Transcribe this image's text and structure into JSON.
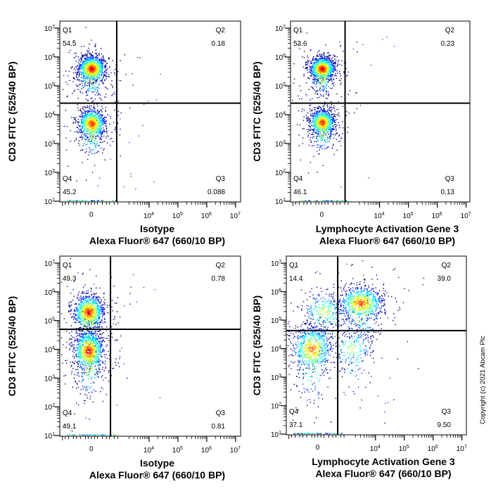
{
  "copyright": "Copyright (c) 2021 Abcam Plc",
  "colors": {
    "low": "#0000ff",
    "mid": "#00ff00",
    "high": "#ff0000",
    "gate": "#000000"
  },
  "chart_data": [
    {
      "type": "scatter",
      "xlabel": [
        "Isotype",
        "Alexa Fluor® 647  (660/10 BP)"
      ],
      "ylabel": "CD3 FITC  (525/40 BP)",
      "x_scale": "biexponential",
      "y_scale": "log",
      "x_ticks": [
        {
          "v": 0,
          "b": "0",
          "e": ""
        },
        {
          "v": 10000,
          "b": "10",
          "e": "4"
        },
        {
          "v": 100000,
          "b": "10",
          "e": "5"
        },
        {
          "v": 1000000,
          "b": "10",
          "e": "6"
        },
        {
          "v": 10000000,
          "b": "10",
          "e": "7"
        }
      ],
      "y_ticks": [
        {
          "v": 10,
          "b": "10",
          "e": "1"
        },
        {
          "v": 100,
          "b": "10",
          "e": "2"
        },
        {
          "v": 1000,
          "b": "10",
          "e": "3"
        },
        {
          "v": 10000,
          "b": "10",
          "e": "4"
        },
        {
          "v": 100000,
          "b": "10",
          "e": "5"
        },
        {
          "v": 1000000,
          "b": "10",
          "e": "6"
        },
        {
          "v": 10000000,
          "b": "10",
          "e": "7"
        }
      ],
      "gate": {
        "x": 740,
        "y": 25000
      },
      "quadrants": [
        {
          "name": "Q1",
          "value": "54.5"
        },
        {
          "name": "Q2",
          "value": "0.18"
        },
        {
          "name": "Q3",
          "value": "0.088"
        },
        {
          "name": "Q4",
          "value": "45.2"
        }
      ],
      "populations": [
        {
          "x": 0,
          "y": 400000,
          "x_sd": 0.55,
          "y_sd": 0.22,
          "weight": 0.54
        },
        {
          "x": 0,
          "y": 5000,
          "x_sd": 0.55,
          "y_sd": 0.25,
          "weight": 0.45
        }
      ]
    },
    {
      "type": "scatter",
      "xlabel": [
        "Lymphocyte Activation Gene 3",
        "Alexa Fluor® 647  (660/10 BP)"
      ],
      "ylabel": "CD3 FITC  (525/40 BP)",
      "x_scale": "biexponential",
      "y_scale": "log",
      "x_ticks": [
        {
          "v": 0,
          "b": "0",
          "e": ""
        },
        {
          "v": 10000,
          "b": "10",
          "e": "4"
        },
        {
          "v": 100000,
          "b": "10",
          "e": "5"
        },
        {
          "v": 1000000,
          "b": "10",
          "e": "6"
        },
        {
          "v": 10000000,
          "b": "10",
          "e": "7"
        }
      ],
      "y_ticks": [
        {
          "v": 10,
          "b": "10",
          "e": "1"
        },
        {
          "v": 100,
          "b": "10",
          "e": "2"
        },
        {
          "v": 1000,
          "b": "10",
          "e": "3"
        },
        {
          "v": 10000,
          "b": "10",
          "e": "4"
        },
        {
          "v": 100000,
          "b": "10",
          "e": "5"
        },
        {
          "v": 1000000,
          "b": "10",
          "e": "6"
        },
        {
          "v": 10000000,
          "b": "10",
          "e": "7"
        }
      ],
      "gate": {
        "x": 620,
        "y": 25000
      },
      "quadrants": [
        {
          "name": "Q1",
          "value": "53.6"
        },
        {
          "name": "Q2",
          "value": "0.23"
        },
        {
          "name": "Q3",
          "value": "0.13"
        },
        {
          "name": "Q4",
          "value": "46.1"
        }
      ],
      "populations": [
        {
          "x": 0,
          "y": 400000,
          "x_sd": 0.5,
          "y_sd": 0.2,
          "weight": 0.54
        },
        {
          "x": 0,
          "y": 5500,
          "x_sd": 0.5,
          "y_sd": 0.22,
          "weight": 0.46
        }
      ]
    },
    {
      "type": "scatter",
      "xlabel": [
        "Isotype",
        "Alexa Fluor® 647  (660/10 BP)"
      ],
      "ylabel": "CD3 FITC  (525/40 BP)",
      "x_scale": "biexponential",
      "y_scale": "log",
      "x_ticks": [
        {
          "v": 0,
          "b": "0",
          "e": ""
        },
        {
          "v": 10000,
          "b": "10",
          "e": "4"
        },
        {
          "v": 100000,
          "b": "10",
          "e": "5"
        },
        {
          "v": 1000000,
          "b": "10",
          "e": "6"
        },
        {
          "v": 10000000,
          "b": "10",
          "e": "7"
        }
      ],
      "y_ticks": [
        {
          "v": 10,
          "b": "10",
          "e": "1"
        },
        {
          "v": 100,
          "b": "10",
          "e": "2"
        },
        {
          "v": 1000,
          "b": "10",
          "e": "3"
        },
        {
          "v": 10000,
          "b": "10",
          "e": "4"
        },
        {
          "v": 100000,
          "b": "10",
          "e": "5"
        },
        {
          "v": 1000000,
          "b": "10",
          "e": "6"
        },
        {
          "v": 10000000,
          "b": "10",
          "e": "7"
        }
      ],
      "gate": {
        "x": 436,
        "y": 50000
      },
      "quadrants": [
        {
          "name": "Q1",
          "value": "49.3"
        },
        {
          "name": "Q2",
          "value": "0.78"
        },
        {
          "name": "Q3",
          "value": "0.81"
        },
        {
          "name": "Q4",
          "value": "49.1"
        }
      ],
      "populations": [
        {
          "x": -50,
          "y": 200000,
          "x_sd": 0.6,
          "y_sd": 0.3,
          "weight": 0.49
        },
        {
          "x": -50,
          "y": 9000,
          "x_sd": 0.6,
          "y_sd": 0.35,
          "weight": 0.49
        }
      ]
    },
    {
      "type": "scatter",
      "xlabel": [
        "Lymphocyte Activation Gene 3",
        "Alexa Fluor® 647  (660/10 BP)"
      ],
      "ylabel": "CD3 FITC  (525/40 BP)",
      "x_scale": "biexponential",
      "y_scale": "log",
      "x_ticks": [
        {
          "v": 0,
          "b": "0",
          "e": ""
        },
        {
          "v": 10000,
          "b": "10",
          "e": "4"
        },
        {
          "v": 100000,
          "b": "10",
          "e": "5"
        },
        {
          "v": 1000000,
          "b": "10",
          "e": "6"
        },
        {
          "v": 10000000,
          "b": "10",
          "e": "7"
        }
      ],
      "y_ticks": [
        {
          "v": 10,
          "b": "10",
          "e": "1"
        },
        {
          "v": 100,
          "b": "10",
          "e": "2"
        },
        {
          "v": 1000,
          "b": "10",
          "e": "3"
        },
        {
          "v": 10000,
          "b": "10",
          "e": "4"
        },
        {
          "v": 100000,
          "b": "10",
          "e": "5"
        },
        {
          "v": 1000000,
          "b": "10",
          "e": "6"
        },
        {
          "v": 10000000,
          "b": "10",
          "e": "7"
        }
      ],
      "gate": {
        "x": 470,
        "y": 43000
      },
      "quadrants": [
        {
          "name": "Q1",
          "value": "14.4"
        },
        {
          "name": "Q2",
          "value": "39.0"
        },
        {
          "name": "Q3",
          "value": "9.50"
        },
        {
          "name": "Q4",
          "value": "37.1"
        }
      ],
      "populations": [
        {
          "x": 3000,
          "y": 400000,
          "x_sd": 0.9,
          "y_sd": 0.3,
          "weight": 0.4
        },
        {
          "x": 100,
          "y": 200000,
          "x_sd": 0.9,
          "y_sd": 0.35,
          "weight": 0.14
        },
        {
          "x": -100,
          "y": 10000,
          "x_sd": 0.8,
          "y_sd": 0.4,
          "weight": 0.37
        },
        {
          "x": 1500,
          "y": 10000,
          "x_sd": 0.8,
          "y_sd": 0.4,
          "weight": 0.09
        }
      ]
    }
  ]
}
